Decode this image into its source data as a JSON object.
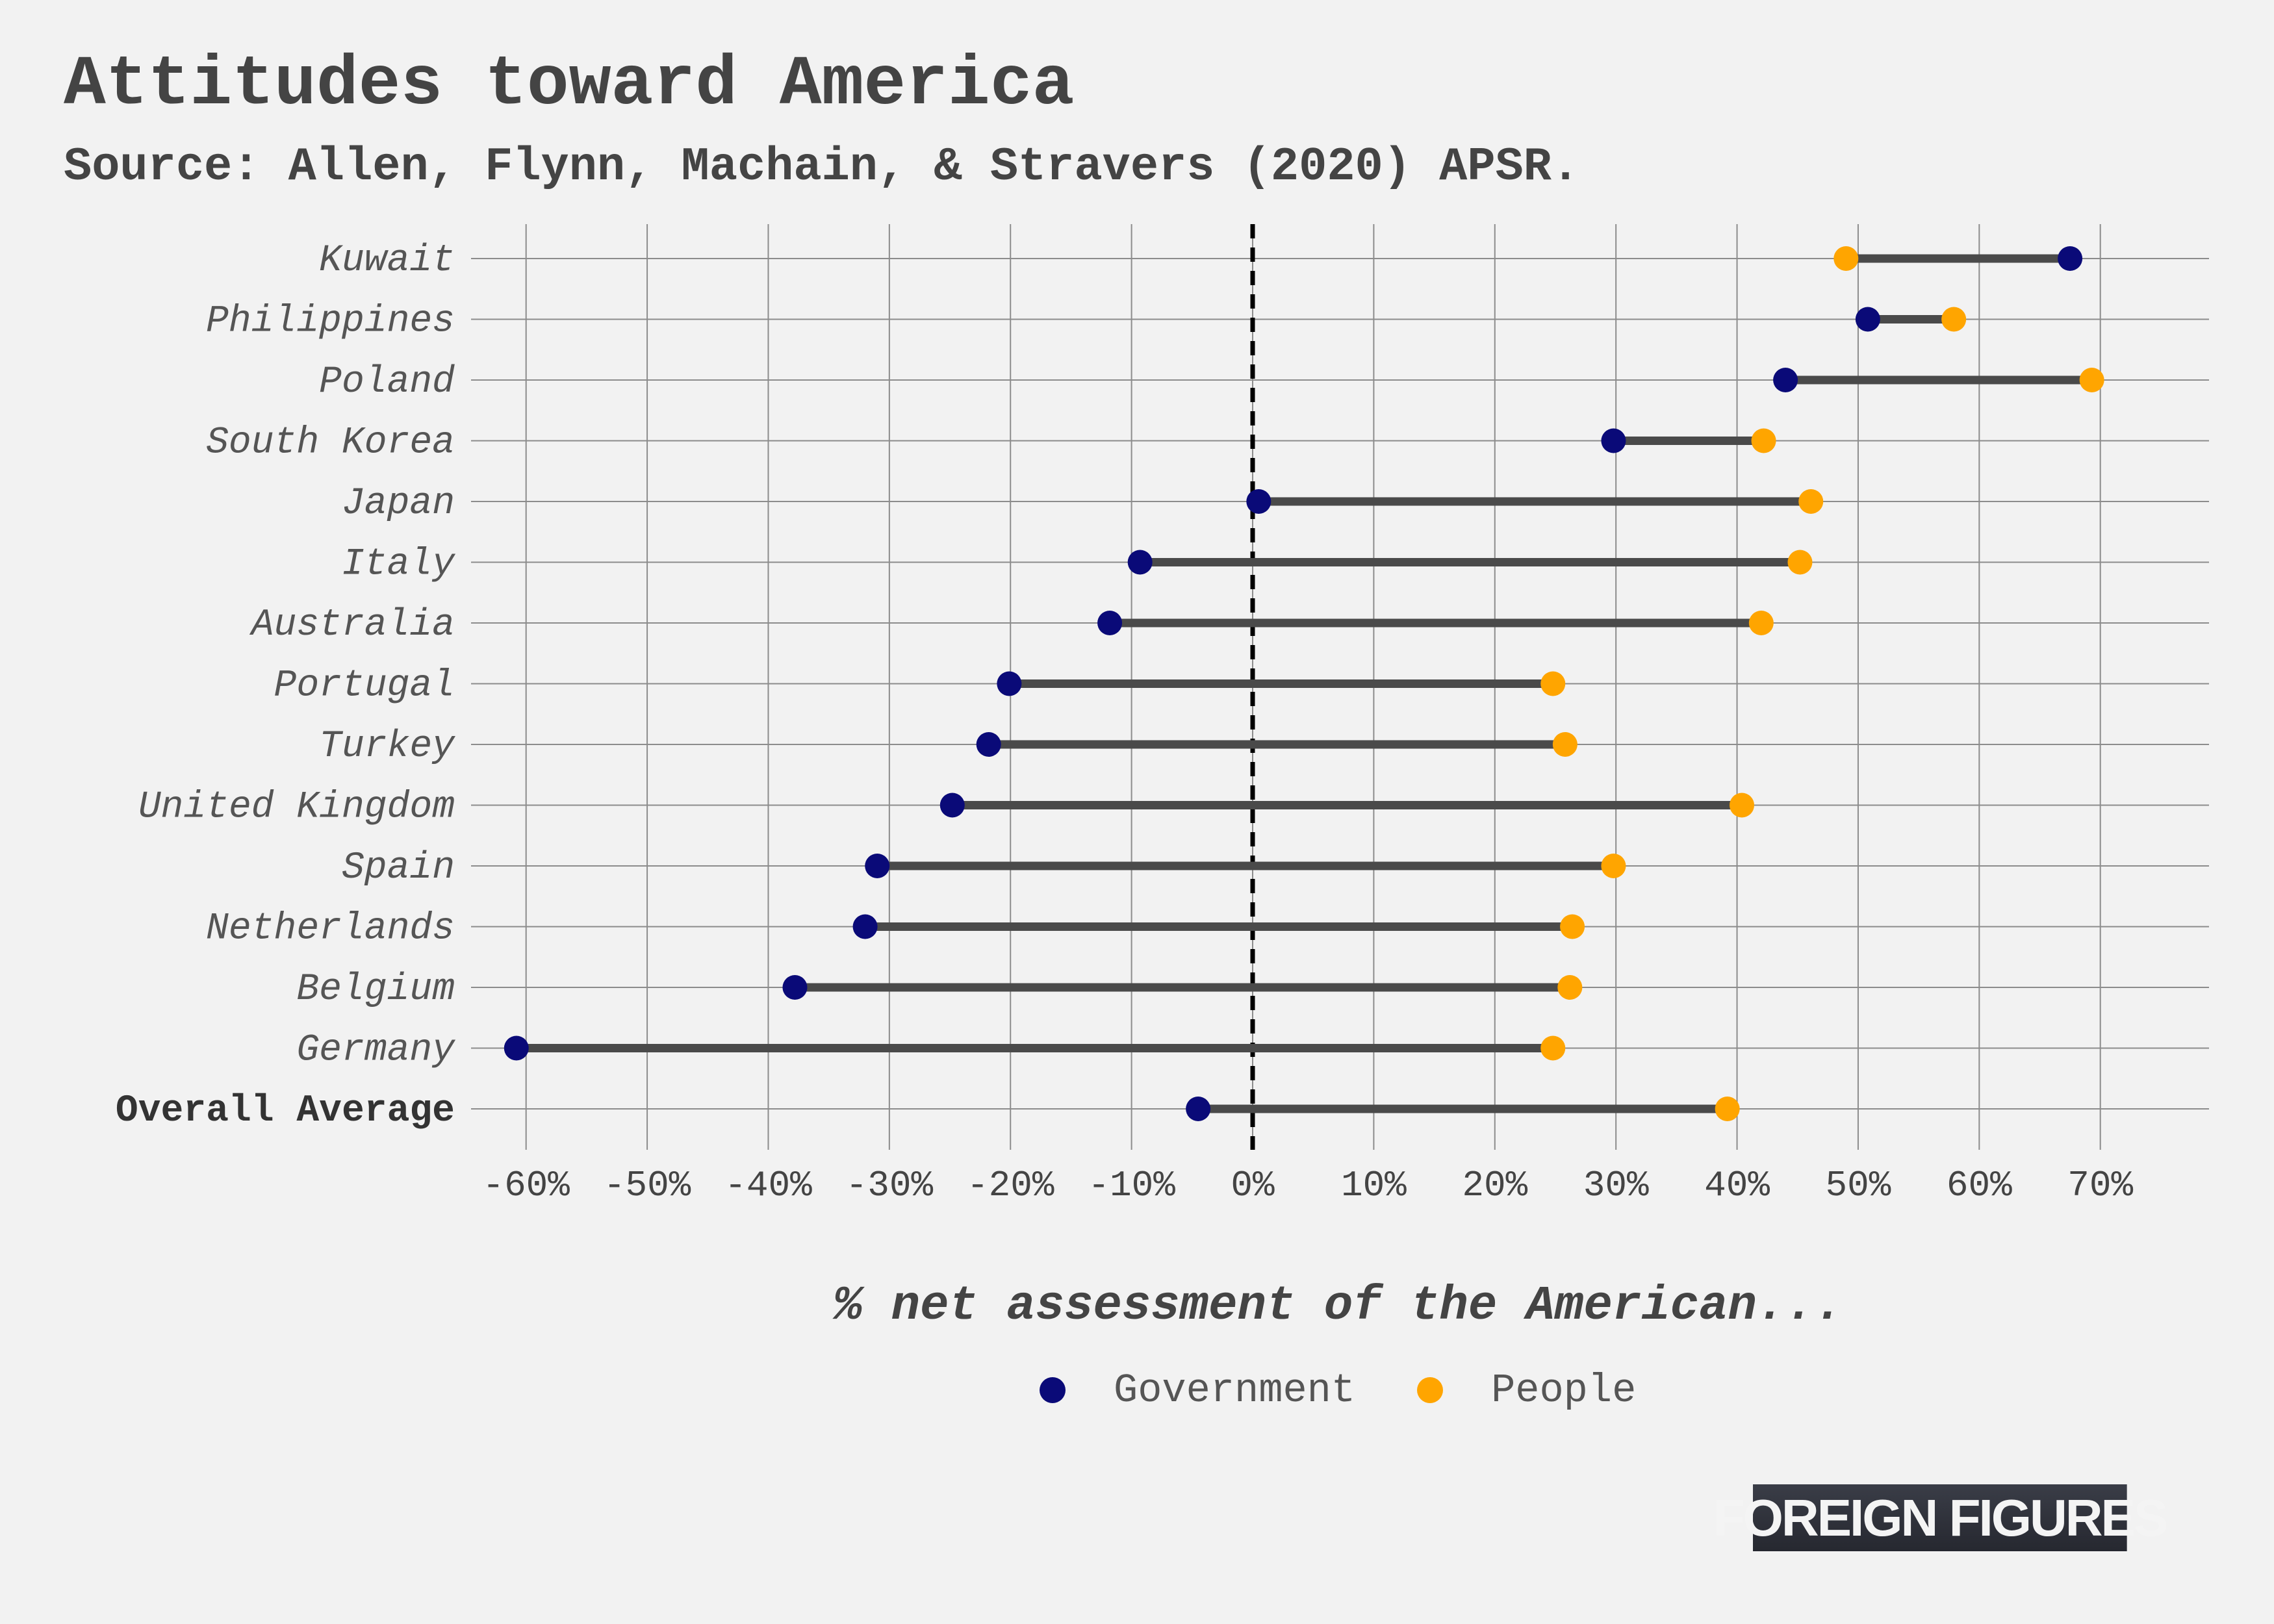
{
  "title": "Attitudes toward America",
  "subtitle": "Source: Allen, Flynn, Machain, & Stravers (2020) APSR.",
  "logo": "FOREIGN FIGURES",
  "colors": {
    "background": "#f2f2f2",
    "government": "#0a0a78",
    "people": "#ffa500",
    "segment": "#4a4a4a",
    "grid": "#8c8c8c",
    "text": "#444444"
  },
  "chart_data": {
    "type": "dumbbell",
    "xlabel": "% net assessment of the American...",
    "xlim": [
      -66,
      74
    ],
    "xticks": [
      -60,
      -50,
      -40,
      -30,
      -20,
      -10,
      0,
      10,
      20,
      30,
      40,
      50,
      60,
      70
    ],
    "xtick_labels": [
      "-60%",
      "-50%",
      "-40%",
      "-30%",
      "-20%",
      "-10%",
      "0%",
      "10%",
      "20%",
      "30%",
      "40%",
      "50%",
      "60%",
      "70%"
    ],
    "reference_line": 0,
    "grid": true,
    "legend_position": "bottom-center",
    "categories": [
      "Kuwait",
      "Philippines",
      "Poland",
      "South Korea",
      "Japan",
      "Italy",
      "Australia",
      "Portugal",
      "Turkey",
      "United Kingdom",
      "Spain",
      "Netherlands",
      "Belgium",
      "Germany",
      "Overall Average"
    ],
    "series": [
      {
        "name": "Government",
        "color": "#0a0a78",
        "values": [
          67.5,
          50.8,
          44.0,
          29.8,
          0.5,
          -9.3,
          -11.8,
          -20.1,
          -21.8,
          -24.8,
          -31.0,
          -32.0,
          -37.8,
          -60.8,
          -4.5
        ]
      },
      {
        "name": "People",
        "color": "#ffa500",
        "values": [
          49.0,
          57.9,
          69.3,
          42.2,
          46.1,
          45.2,
          42.0,
          24.8,
          25.8,
          40.4,
          29.8,
          26.4,
          26.2,
          24.8,
          39.2
        ]
      }
    ]
  }
}
